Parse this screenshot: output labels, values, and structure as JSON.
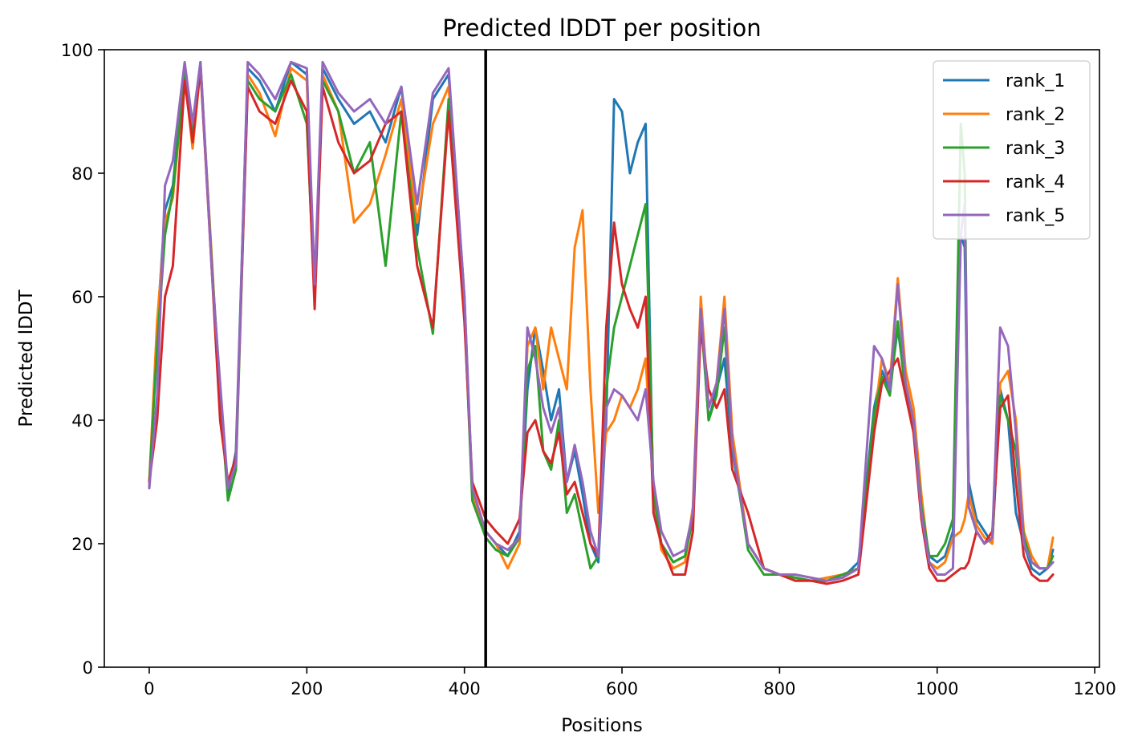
{
  "chart_data": {
    "type": "line",
    "title": "Predicted lDDT per position",
    "xlabel": "Positions",
    "ylabel": "Predicted lDDT",
    "xlim": [
      -57,
      1206
    ],
    "ylim": [
      0,
      100
    ],
    "xticks": [
      0,
      200,
      400,
      600,
      800,
      1000,
      1200
    ],
    "yticks": [
      0,
      20,
      40,
      60,
      80,
      100
    ],
    "xtick_labels": [
      "0",
      "200",
      "400",
      "600",
      "800",
      "1000",
      "1200"
    ],
    "ytick_labels": [
      "0",
      "20",
      "40",
      "60",
      "80",
      "100"
    ],
    "grid": false,
    "legend_position": "top-right",
    "vertical_line_x": 427,
    "vertical_line_color": "#000000",
    "series": [
      {
        "name": "rank_1",
        "color": "#1f77b4",
        "x": [
          0,
          10,
          20,
          30,
          45,
          55,
          65,
          80,
          90,
          100,
          110,
          125,
          140,
          160,
          180,
          200,
          210,
          220,
          240,
          260,
          280,
          300,
          320,
          340,
          360,
          380,
          400,
          410,
          427,
          440,
          455,
          470,
          480,
          490,
          500,
          510,
          520,
          530,
          540,
          550,
          560,
          570,
          580,
          590,
          600,
          610,
          620,
          630,
          640,
          650,
          665,
          680,
          690,
          700,
          710,
          720,
          730,
          740,
          760,
          780,
          800,
          820,
          840,
          860,
          880,
          900,
          920,
          930,
          940,
          950,
          960,
          970,
          980,
          990,
          1000,
          1010,
          1020,
          1030,
          1035,
          1040,
          1050,
          1060,
          1070,
          1080,
          1090,
          1100,
          1110,
          1120,
          1130,
          1140,
          1147
        ],
        "values": [
          29,
          55,
          74,
          78,
          97,
          88,
          98,
          64,
          45,
          28,
          35,
          97,
          95,
          90,
          98,
          96,
          60,
          97,
          92,
          88,
          90,
          85,
          94,
          70,
          92,
          96,
          60,
          28,
          22,
          20,
          18,
          22,
          45,
          55,
          48,
          40,
          45,
          30,
          35,
          28,
          20,
          17,
          40,
          92,
          90,
          80,
          85,
          88,
          25,
          20,
          17,
          18,
          25,
          58,
          40,
          45,
          50,
          35,
          20,
          16,
          15,
          14.5,
          14,
          14,
          14.5,
          17,
          42,
          48,
          45,
          55,
          45,
          40,
          25,
          18,
          17,
          18,
          22,
          70,
          68,
          30,
          24,
          22,
          20,
          45,
          40,
          25,
          20,
          16,
          15,
          16,
          19
        ]
      },
      {
        "name": "rank_2",
        "color": "#ff7f0e",
        "x": [
          0,
          10,
          20,
          30,
          45,
          55,
          65,
          80,
          90,
          100,
          110,
          125,
          140,
          160,
          180,
          200,
          210,
          220,
          240,
          260,
          280,
          300,
          320,
          340,
          360,
          380,
          400,
          410,
          427,
          440,
          455,
          470,
          480,
          490,
          500,
          510,
          520,
          530,
          540,
          550,
          560,
          570,
          580,
          590,
          600,
          610,
          620,
          630,
          640,
          650,
          665,
          680,
          690,
          700,
          710,
          720,
          730,
          740,
          760,
          780,
          800,
          820,
          840,
          860,
          880,
          900,
          920,
          930,
          940,
          950,
          960,
          970,
          980,
          990,
          1000,
          1010,
          1020,
          1030,
          1035,
          1040,
          1050,
          1060,
          1070,
          1080,
          1090,
          1100,
          1110,
          1120,
          1130,
          1140,
          1147
        ],
        "values": [
          30,
          56,
          72,
          76,
          96,
          84,
          97,
          65,
          42,
          29,
          33,
          96,
          93,
          86,
          97,
          95,
          60,
          96,
          90,
          72,
          75,
          83,
          92,
          72,
          88,
          94,
          58,
          28,
          22,
          20,
          16,
          20,
          52,
          55,
          45,
          55,
          50,
          45,
          68,
          74,
          45,
          25,
          38,
          40,
          44,
          42,
          45,
          50,
          28,
          19,
          16,
          17,
          26,
          60,
          42,
          46,
          60,
          38,
          20,
          16,
          15,
          14.5,
          14,
          14.5,
          15,
          16,
          40,
          50,
          46,
          63,
          48,
          42,
          28,
          17,
          16,
          17,
          21,
          22,
          24,
          28,
          23,
          21,
          20,
          46,
          48,
          40,
          22,
          18,
          16,
          16,
          21
        ]
      },
      {
        "name": "rank_3",
        "color": "#2ca02c",
        "x": [
          0,
          10,
          20,
          30,
          45,
          55,
          65,
          80,
          90,
          100,
          110,
          125,
          140,
          160,
          180,
          200,
          210,
          220,
          240,
          260,
          280,
          300,
          320,
          340,
          360,
          380,
          400,
          410,
          427,
          440,
          455,
          470,
          480,
          490,
          500,
          510,
          520,
          530,
          540,
          550,
          560,
          570,
          580,
          590,
          600,
          610,
          620,
          630,
          640,
          650,
          665,
          680,
          690,
          700,
          710,
          720,
          730,
          740,
          760,
          780,
          800,
          820,
          840,
          860,
          880,
          900,
          920,
          930,
          940,
          950,
          960,
          970,
          980,
          990,
          1000,
          1010,
          1020,
          1030,
          1035,
          1040,
          1050,
          1060,
          1070,
          1080,
          1090,
          1100,
          1110,
          1120,
          1130,
          1140,
          1147
        ],
        "values": [
          30,
          52,
          70,
          77,
          96,
          86,
          97,
          64,
          44,
          27,
          32,
          95,
          92,
          90,
          96,
          88,
          60,
          95,
          90,
          80,
          85,
          65,
          90,
          68,
          54,
          92,
          58,
          27,
          21,
          19,
          18,
          21,
          48,
          52,
          35,
          32,
          40,
          25,
          28,
          22,
          16,
          18,
          45,
          55,
          60,
          65,
          70,
          75,
          28,
          20,
          17,
          18,
          24,
          57,
          40,
          44,
          55,
          36,
          19,
          15,
          15,
          14.5,
          14,
          14,
          15,
          16,
          41,
          47,
          44,
          56,
          44,
          40,
          26,
          18,
          18,
          20,
          24,
          88,
          80,
          26,
          22,
          20,
          21,
          44,
          40,
          35,
          21,
          17,
          16,
          16,
          18
        ]
      },
      {
        "name": "rank_4",
        "color": "#d62728",
        "x": [
          0,
          10,
          20,
          30,
          45,
          55,
          65,
          80,
          90,
          100,
          110,
          125,
          140,
          160,
          180,
          200,
          210,
          220,
          240,
          260,
          280,
          300,
          320,
          340,
          360,
          380,
          400,
          410,
          427,
          440,
          455,
          470,
          480,
          490,
          500,
          510,
          520,
          530,
          540,
          550,
          560,
          570,
          580,
          590,
          600,
          610,
          620,
          630,
          640,
          650,
          665,
          680,
          690,
          700,
          710,
          720,
          730,
          740,
          760,
          780,
          800,
          820,
          840,
          860,
          880,
          900,
          920,
          930,
          940,
          950,
          960,
          970,
          980,
          990,
          1000,
          1010,
          1020,
          1030,
          1035,
          1040,
          1050,
          1060,
          1070,
          1080,
          1090,
          1100,
          1110,
          1120,
          1130,
          1140,
          1147
        ],
        "values": [
          30,
          40,
          60,
          65,
          95,
          85,
          97,
          63,
          40,
          30,
          34,
          94,
          90,
          88,
          95,
          90,
          58,
          94,
          85,
          80,
          82,
          88,
          90,
          65,
          55,
          90,
          56,
          30,
          24,
          22,
          20,
          24,
          38,
          40,
          35,
          33,
          38,
          28,
          30,
          25,
          20,
          18,
          55,
          72,
          62,
          58,
          55,
          60,
          25,
          20,
          15,
          15,
          22,
          55,
          45,
          42,
          45,
          32,
          25,
          16,
          15,
          14,
          14,
          13.5,
          14,
          15,
          38,
          46,
          48,
          50,
          44,
          38,
          24,
          16,
          14,
          14,
          15,
          16,
          16,
          17,
          22,
          20,
          22,
          42,
          44,
          30,
          18,
          15,
          14,
          14,
          15
        ]
      },
      {
        "name": "rank_5",
        "color": "#9467bd",
        "x": [
          0,
          10,
          20,
          30,
          45,
          55,
          65,
          80,
          90,
          100,
          110,
          125,
          140,
          160,
          180,
          200,
          210,
          220,
          240,
          260,
          280,
          300,
          320,
          340,
          360,
          380,
          400,
          410,
          427,
          440,
          455,
          470,
          480,
          490,
          500,
          510,
          520,
          530,
          540,
          550,
          560,
          570,
          580,
          590,
          600,
          610,
          620,
          630,
          640,
          650,
          665,
          680,
          690,
          700,
          710,
          720,
          730,
          740,
          760,
          780,
          800,
          820,
          840,
          860,
          880,
          900,
          920,
          930,
          940,
          950,
          960,
          970,
          980,
          990,
          1000,
          1010,
          1020,
          1030,
          1035,
          1040,
          1050,
          1060,
          1070,
          1080,
          1090,
          1100,
          1110,
          1120,
          1130,
          1140,
          1147
        ],
        "values": [
          29,
          44,
          78,
          82,
          98,
          88,
          98,
          63,
          46,
          29,
          33,
          98,
          96,
          92,
          98,
          97,
          62,
          98,
          93,
          90,
          92,
          88,
          94,
          75,
          93,
          97,
          60,
          29,
          22,
          20,
          19,
          21,
          55,
          50,
          42,
          38,
          42,
          30,
          36,
          30,
          22,
          18,
          42,
          45,
          44,
          42,
          40,
          45,
          30,
          22,
          18,
          19,
          25,
          58,
          42,
          46,
          58,
          36,
          20,
          16,
          15,
          15,
          14.5,
          14,
          14.5,
          16,
          52,
          50,
          45,
          62,
          46,
          40,
          25,
          17,
          15,
          15,
          16,
          70,
          75,
          26,
          22,
          20,
          21,
          55,
          52,
          38,
          20,
          17,
          16,
          16,
          17
        ]
      }
    ]
  }
}
